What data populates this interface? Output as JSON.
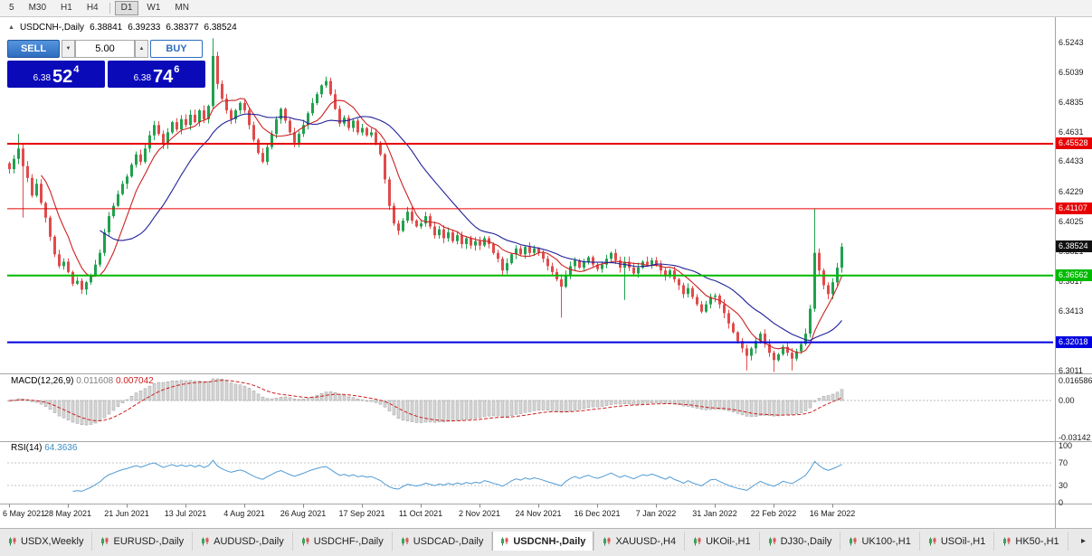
{
  "toolbar": {
    "timeframes": [
      {
        "label": "5",
        "active": false
      },
      {
        "label": "M30",
        "active": false
      },
      {
        "label": "H1",
        "active": false
      },
      {
        "label": "H4",
        "active": false
      },
      {
        "label": "D1",
        "active": true
      },
      {
        "label": "W1",
        "active": false
      },
      {
        "label": "MN",
        "active": false
      }
    ]
  },
  "chart": {
    "collapse_icon": "▲",
    "symbol": "USDCNH-,Daily",
    "quote_open": "6.38841",
    "quote_high": "6.39233",
    "quote_low": "6.38377",
    "quote_close": "6.38524"
  },
  "one_click": {
    "sell_label": "SELL",
    "buy_label": "BUY",
    "volume": "5.00",
    "spin_up_icon": "▲",
    "spin_down_icon": "▼",
    "sell_price": {
      "prefix": "6.38",
      "big": "52",
      "sup": "4"
    },
    "buy_price": {
      "prefix": "6.38",
      "big": "74",
      "sup": "6"
    }
  },
  "price_axis": {
    "top": 6.5408,
    "bottom": 6.299,
    "ticks": [
      "6.5243",
      "6.5039",
      "6.4835",
      "6.4631",
      "6.4433",
      "6.4229",
      "6.4025",
      "6.3821",
      "6.3617",
      "6.3413",
      "6.3209",
      "6.3011"
    ],
    "current_price": {
      "label": "6.38524",
      "value": 6.38524,
      "bg": "#111111"
    }
  },
  "hlines": [
    {
      "label": "6.45528",
      "value": 6.45528,
      "color": "#e60000",
      "width": 2
    },
    {
      "label": "6.41107",
      "value": 6.41107,
      "color": "#e60000",
      "width": 1
    },
    {
      "label": "6.36562",
      "value": 6.36562,
      "color": "#00ba00",
      "width": 2
    },
    {
      "label": "6.32018",
      "value": 6.32018,
      "color": "#0000e0",
      "width": 2
    }
  ],
  "macd_panel": {
    "name": "MACD(12,26,9)",
    "main_value": "0.011608",
    "signal_value": "0.007042",
    "axis": [
      {
        "label": "0.016586",
        "value": 0.016586
      },
      {
        "label": "0.00",
        "value": 0
      },
      {
        "label": "-0.03142",
        "value": -0.03142
      }
    ]
  },
  "rsi_panel": {
    "name": "RSI(14)",
    "value": "64.3636",
    "axis": [
      {
        "label": "100",
        "value": 100
      },
      {
        "label": "70",
        "value": 70
      },
      {
        "label": "30",
        "value": 30
      },
      {
        "label": "0",
        "value": 0
      }
    ],
    "levels": [
      70,
      30
    ]
  },
  "date_axis": [
    "6 May 2021",
    "28 May 2021",
    "21 Jun 2021",
    "13 Jul 2021",
    "4 Aug 2021",
    "26 Aug 2021",
    "17 Sep 2021",
    "11 Oct 2021",
    "2 Nov 2021",
    "24 Nov 2021",
    "16 Dec 2021",
    "7 Jan 2022",
    "31 Jan 2022",
    "22 Feb 2022",
    "16 Mar 2022"
  ],
  "tabs": {
    "items": [
      {
        "label": "USDX,Weekly",
        "active": false
      },
      {
        "label": "EURUSD-,Daily",
        "active": false
      },
      {
        "label": "AUDUSD-,Daily",
        "active": false
      },
      {
        "label": "USDCHF-,Daily",
        "active": false
      },
      {
        "label": "USDCAD-,Daily",
        "active": false
      },
      {
        "label": "USDCNH-,Daily",
        "active": true
      },
      {
        "label": "XAUUSD-,H4",
        "active": false
      },
      {
        "label": "UKOil-,H1",
        "active": false
      },
      {
        "label": "DJ30-,Daily",
        "active": false
      },
      {
        "label": "UK100-,H1",
        "active": false
      },
      {
        "label": "USOil-,H1",
        "active": false
      },
      {
        "label": "HK50-,H1",
        "active": false
      }
    ],
    "scroll_right_icon": "▸"
  },
  "colors": {
    "candle_up": "#21a14e",
    "candle_down": "#e14b4b",
    "ma_fast": "#cc2222",
    "ma_slow": "#20209a",
    "macd_hist_fill": "#d6d6d6",
    "macd_hist_stroke": "#a0a0a0",
    "macd_signal": "#cc2222",
    "rsi_line": "#4f9bd5"
  },
  "chart_data": {
    "type": "candlestick",
    "symbol": "USDCNH",
    "timeframe": "Daily",
    "x_labels": [
      "6 May 2021",
      "28 May 2021",
      "21 Jun 2021",
      "13 Jul 2021",
      "4 Aug 2021",
      "26 Aug 2021",
      "17 Sep 2021",
      "11 Oct 2021",
      "2 Nov 2021",
      "24 Nov 2021",
      "16 Dec 2021",
      "7 Jan 2022",
      "31 Jan 2022",
      "22 Feb 2022",
      "16 Mar 2022"
    ],
    "bars_per_label": 13,
    "price_axis_range": {
      "top": 6.5408,
      "bottom": 6.299
    },
    "closes": [
      6.438,
      6.445,
      6.452,
      6.44,
      6.432,
      6.42,
      6.428,
      6.415,
      6.405,
      6.392,
      6.38,
      6.372,
      6.375,
      6.368,
      6.36,
      6.362,
      6.356,
      6.361,
      6.366,
      6.373,
      6.381,
      6.395,
      6.406,
      6.413,
      6.421,
      6.428,
      6.433,
      6.441,
      6.448,
      6.443,
      6.452,
      6.461,
      6.468,
      6.462,
      6.455,
      6.463,
      6.47,
      6.465,
      6.472,
      6.468,
      6.475,
      6.47,
      6.478,
      6.472,
      6.481,
      6.515,
      6.496,
      6.486,
      6.478,
      6.472,
      6.478,
      6.483,
      6.478,
      6.468,
      6.458,
      6.449,
      6.443,
      6.453,
      6.462,
      6.472,
      6.479,
      6.471,
      6.463,
      6.456,
      6.462,
      6.468,
      6.476,
      6.483,
      6.489,
      6.495,
      6.498,
      6.489,
      6.479,
      6.469,
      6.473,
      6.466,
      6.471,
      6.463,
      6.466,
      6.461,
      6.463,
      6.456,
      6.448,
      6.431,
      6.413,
      6.401,
      6.396,
      6.403,
      6.409,
      6.403,
      6.399,
      6.401,
      6.406,
      6.399,
      6.393,
      6.397,
      6.391,
      6.395,
      6.389,
      6.393,
      6.387,
      6.391,
      6.386,
      6.389,
      6.386,
      6.391,
      6.387,
      6.381,
      6.377,
      6.369,
      6.374,
      6.38,
      6.384,
      6.38,
      6.385,
      6.381,
      6.384,
      6.381,
      6.377,
      6.372,
      6.368,
      6.363,
      6.358,
      6.366,
      6.372,
      6.376,
      6.371,
      6.375,
      6.378,
      6.373,
      6.37,
      6.373,
      6.377,
      6.381,
      6.376,
      6.371,
      6.375,
      6.371,
      6.367,
      6.371,
      6.375,
      6.373,
      6.376,
      6.373,
      6.369,
      6.365,
      6.369,
      6.363,
      6.359,
      6.353,
      6.357,
      6.351,
      6.346,
      6.341,
      6.346,
      6.351,
      6.352,
      6.346,
      6.34,
      6.333,
      6.327,
      6.321,
      6.316,
      6.311,
      6.316,
      6.321,
      6.326,
      6.319,
      6.313,
      6.308,
      6.312,
      6.317,
      6.313,
      6.309,
      6.314,
      6.319,
      6.326,
      6.343,
      6.381,
      6.369,
      6.359,
      6.353,
      6.361,
      6.371,
      6.3852
    ],
    "wick_overrides": {
      "2": {
        "h": 6.462
      },
      "3": {
        "l": 6.405
      },
      "45": {
        "h": 6.527
      },
      "122": {
        "l": 6.337
      },
      "136": {
        "l": 6.349
      },
      "163": {
        "l": 6.301
      },
      "169": {
        "l": 6.3
      },
      "173": {
        "l": 6.301
      },
      "178": {
        "h": 6.411
      }
    },
    "overlays": [
      {
        "type": "sma",
        "period": 8
      },
      {
        "type": "sma",
        "period": 21
      }
    ],
    "indicators": [
      {
        "type": "macd",
        "fast": 12,
        "slow": 26,
        "signal": 9,
        "last_main": 0.011608,
        "last_signal": 0.007042
      },
      {
        "type": "rsi",
        "period": 14,
        "last": 64.3636
      }
    ],
    "hlines": [
      6.45528,
      6.41107,
      6.36562,
      6.32018
    ],
    "ohlc_last": {
      "open": 6.38841,
      "high": 6.39233,
      "low": 6.38377,
      "close": 6.38524
    }
  }
}
